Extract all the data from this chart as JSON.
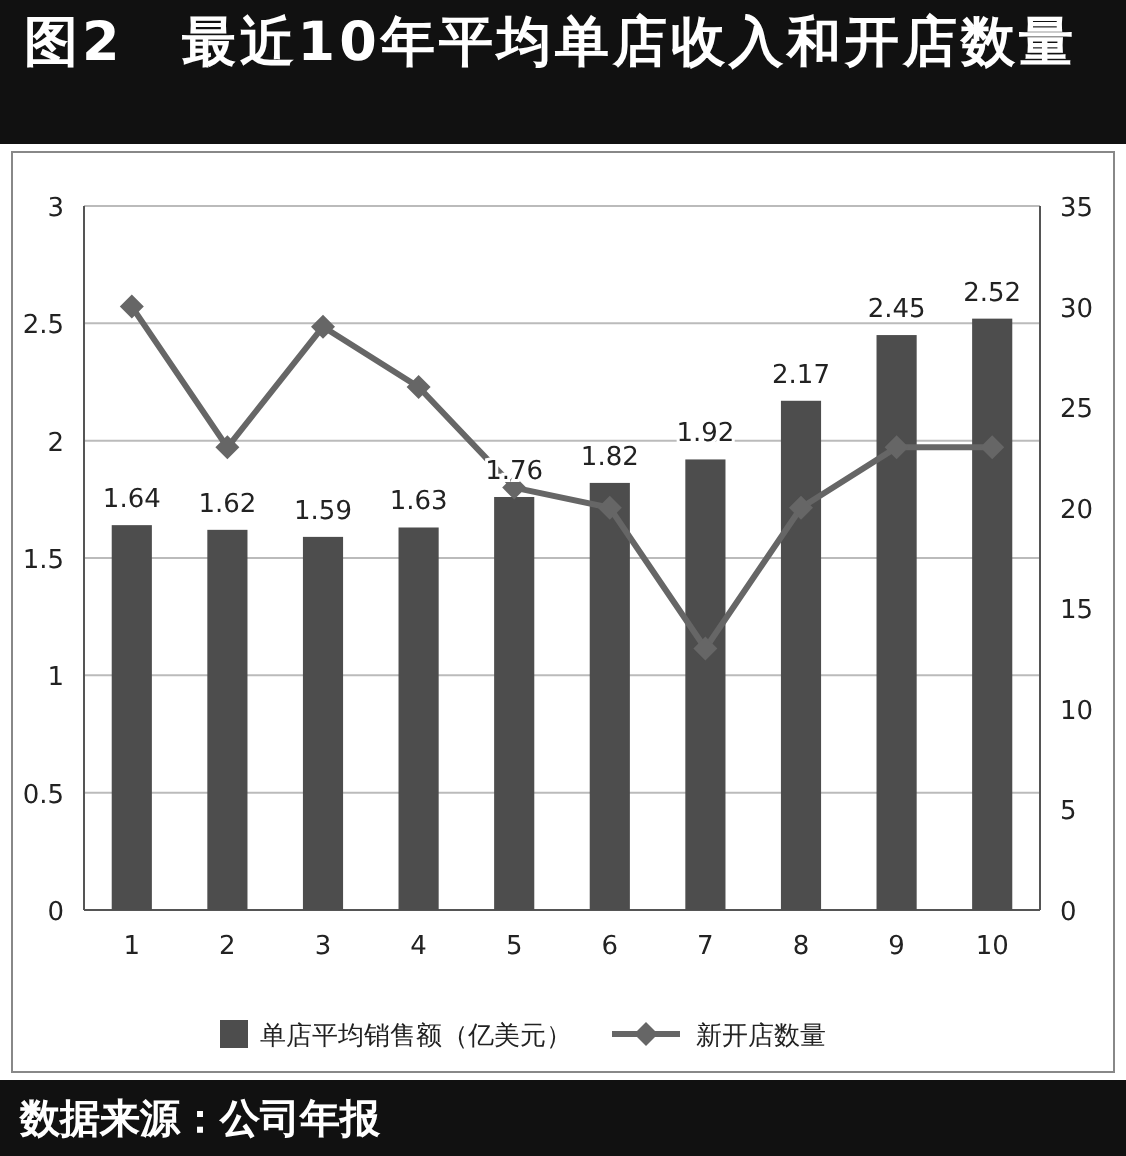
{
  "chart_data": {
    "type": "bar",
    "title": "图2　最近10年平均单店收入和开店数量",
    "categories": [
      "1",
      "2",
      "3",
      "4",
      "5",
      "6",
      "7",
      "8",
      "9",
      "10"
    ],
    "series": [
      {
        "name": "单店平均销售额（亿美元）",
        "color": "#4d4d4d",
        "values": [
          1.64,
          1.62,
          1.59,
          1.63,
          1.76,
          1.82,
          1.92,
          2.17,
          2.45,
          2.52
        ],
        "value_labels": [
          "1.64",
          "1.62",
          "1.59",
          "1.63",
          "1.76",
          "1.82",
          "1.92",
          "2.17",
          "2.45",
          "2.52"
        ]
      },
      {
        "name": "新开店数量",
        "type": "line",
        "axis": "y2",
        "color": "#666666",
        "values": [
          30,
          23,
          29,
          26,
          21,
          20,
          13,
          20,
          23,
          23
        ]
      }
    ],
    "ylim": [
      0,
      3
    ],
    "yticks": [
      0,
      0.5,
      1,
      1.5,
      2,
      2.5,
      3
    ],
    "y2lim": [
      0,
      35
    ],
    "y2ticks": [
      0,
      5,
      10,
      15,
      20,
      25,
      30,
      35
    ],
    "grid": "y",
    "legend": "bottom",
    "marker": "diamond",
    "line_style": "solid",
    "annotations": [
      "数据来源：公司年报"
    ]
  }
}
